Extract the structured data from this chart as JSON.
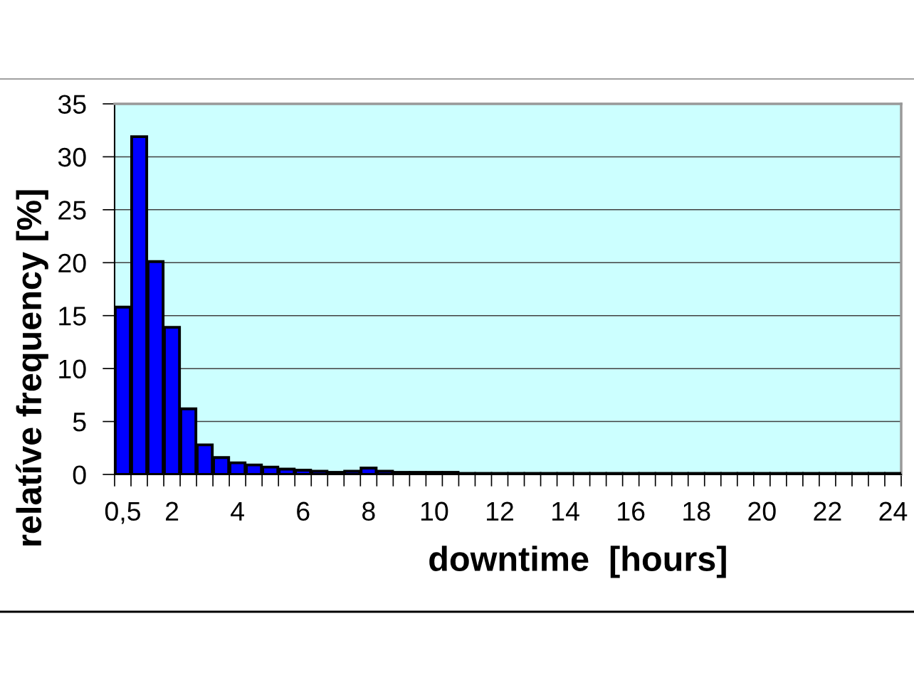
{
  "chart_data": {
    "type": "bar",
    "xlabel": "downtime  [hours]",
    "ylabel": "relatíve frequency [%]",
    "categories": [
      "0,5",
      null,
      null,
      "2",
      null,
      null,
      null,
      "4",
      null,
      null,
      null,
      "6",
      null,
      null,
      null,
      "8",
      null,
      null,
      null,
      "10",
      null,
      null,
      null,
      "12",
      null,
      null,
      null,
      "14",
      null,
      null,
      null,
      "16",
      null,
      null,
      null,
      "18",
      null,
      null,
      null,
      "20",
      null,
      null,
      null,
      "22",
      null,
      null,
      null,
      "24"
    ],
    "values": [
      15.8,
      31.9,
      20.1,
      13.9,
      6.2,
      2.8,
      1.6,
      1.1,
      0.9,
      0.7,
      0.5,
      0.4,
      0.3,
      0.2,
      0.3,
      0.6,
      0.3,
      0.2,
      0.2,
      0.2,
      0.2,
      0.1,
      0.1,
      0.1,
      0.1,
      0.1,
      0.1,
      0.1,
      0.1,
      0.1,
      0.1,
      0.1,
      0.1,
      0.1,
      0.1,
      0.1,
      0.1,
      0.1,
      0.1,
      0.1,
      0.1,
      0.1,
      0.1,
      0.1,
      0.1,
      0.1,
      0.1,
      0.1
    ],
    "color": "#0000ff",
    "ylim": [
      0,
      35
    ],
    "yticks": [
      0,
      5,
      10,
      15,
      20,
      25,
      30,
      35
    ],
    "grid": "y"
  }
}
